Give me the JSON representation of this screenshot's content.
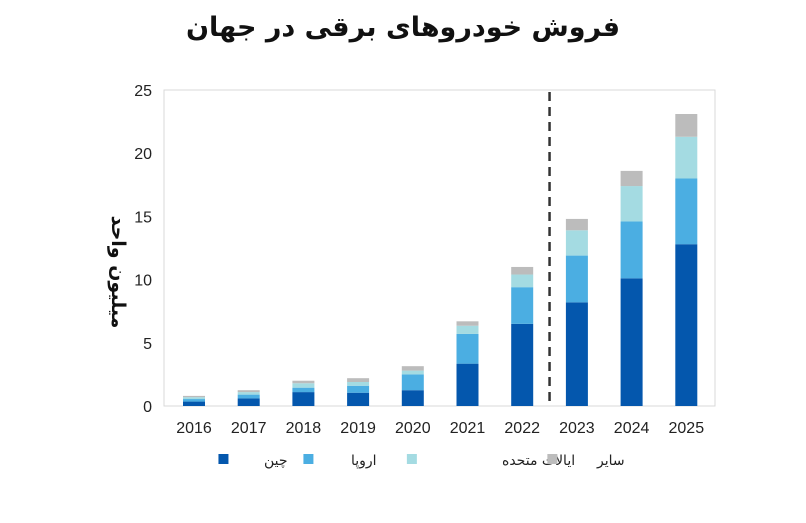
{
  "chart_data": {
    "type": "bar",
    "stacked": true,
    "title": "فروش خودروهای برقی در جهان",
    "ylabel": "میلیون واحد",
    "xlabel": "",
    "categories": [
      "2016",
      "2017",
      "2018",
      "2019",
      "2020",
      "2021",
      "2022",
      "2023",
      "2024",
      "2025"
    ],
    "ylim": [
      0,
      25
    ],
    "yticks": [
      0,
      5,
      10,
      15,
      20,
      25
    ],
    "grid": false,
    "forecast_divider_after": "2022",
    "legend_position": "bottom",
    "series": [
      {
        "name": "چین",
        "color": "#0457ad",
        "values": [
          0.35,
          0.6,
          1.1,
          1.05,
          1.25,
          3.35,
          6.5,
          8.2,
          10.1,
          12.8
        ]
      },
      {
        "name": "اروپا",
        "color": "#4baee2",
        "values": [
          0.2,
          0.3,
          0.35,
          0.55,
          1.25,
          2.35,
          2.9,
          3.7,
          4.5,
          5.2
        ]
      },
      {
        "name": "ایالات متحده",
        "color": "#a4dbe2",
        "values": [
          0.15,
          0.2,
          0.35,
          0.3,
          0.3,
          0.65,
          1.0,
          2.0,
          2.8,
          3.3
        ]
      },
      {
        "name": "سایر",
        "color": "#bcbcbc",
        "values": [
          0.1,
          0.15,
          0.2,
          0.3,
          0.35,
          0.35,
          0.6,
          0.9,
          1.2,
          1.8
        ]
      }
    ]
  }
}
